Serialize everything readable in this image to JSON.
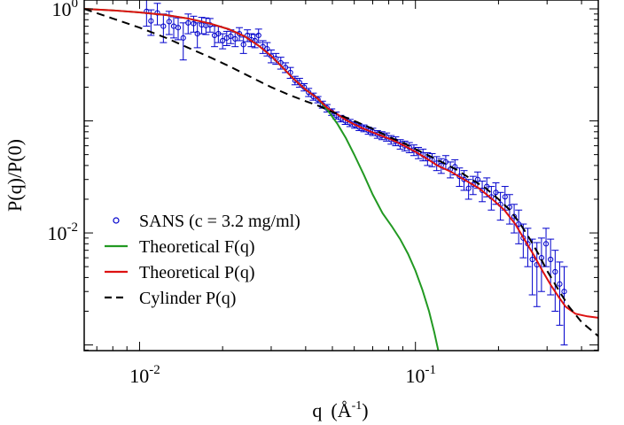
{
  "chart_data": {
    "type": "scatter",
    "xlabel": "q",
    "xlabel_unit_open": "(Å",
    "xlabel_unit_exp": "-1",
    "xlabel_unit_close": ")",
    "ylabel": "P(q)/P(0)",
    "xscale": "log",
    "yscale": "log",
    "xlim": [
      0.0063,
      0.46
    ],
    "ylim": [
      0.00089,
      1.2
    ],
    "grid": false,
    "legend_position": "bottom-left",
    "x_ticks": [
      {
        "value": 0.01,
        "base": "10",
        "exp": "-2"
      },
      {
        "value": 0.1,
        "base": "10",
        "exp": "-1"
      }
    ],
    "y_ticks": [
      {
        "value": 1.0,
        "base": "10",
        "exp": "0"
      },
      {
        "value": 0.01,
        "base": "10",
        "exp": "-2"
      }
    ],
    "series": [
      {
        "name": "SANS (c = 3.2 mg/ml)",
        "kind": "points",
        "color": "#0000cc",
        "points": [
          [
            0.0106,
            0.95,
            0.25
          ],
          [
            0.011,
            0.78,
            0.2
          ],
          [
            0.0116,
            0.92,
            0.2
          ],
          [
            0.0122,
            0.7,
            0.2
          ],
          [
            0.0128,
            0.77,
            0.18
          ],
          [
            0.0133,
            0.7,
            0.15
          ],
          [
            0.0138,
            0.68,
            0.15
          ],
          [
            0.0144,
            0.55,
            0.2
          ],
          [
            0.015,
            0.75,
            0.15
          ],
          [
            0.0157,
            0.74,
            0.12
          ],
          [
            0.0162,
            0.6,
            0.15
          ],
          [
            0.0168,
            0.72,
            0.12
          ],
          [
            0.0174,
            0.71,
            0.12
          ],
          [
            0.018,
            0.72,
            0.1
          ],
          [
            0.0187,
            0.58,
            0.12
          ],
          [
            0.0193,
            0.6,
            0.1
          ],
          [
            0.02,
            0.52,
            0.08
          ],
          [
            0.0207,
            0.55,
            0.08
          ],
          [
            0.0214,
            0.57,
            0.08
          ],
          [
            0.0222,
            0.54,
            0.08
          ],
          [
            0.023,
            0.6,
            0.08
          ],
          [
            0.0238,
            0.48,
            0.08
          ],
          [
            0.0246,
            0.58,
            0.07
          ],
          [
            0.0254,
            0.53,
            0.07
          ],
          [
            0.0262,
            0.52,
            0.07
          ],
          [
            0.027,
            0.58,
            0.08
          ],
          [
            0.028,
            0.46,
            0.06
          ],
          [
            0.029,
            0.44,
            0.06
          ],
          [
            0.03,
            0.38,
            0.05
          ],
          [
            0.0312,
            0.36,
            0.04
          ],
          [
            0.0325,
            0.33,
            0.04
          ],
          [
            0.0338,
            0.3,
            0.03
          ],
          [
            0.0352,
            0.27,
            0.03
          ],
          [
            0.0366,
            0.23,
            0.02
          ],
          [
            0.038,
            0.22,
            0.02
          ],
          [
            0.0395,
            0.2,
            0.015
          ],
          [
            0.041,
            0.18,
            0.015
          ],
          [
            0.0426,
            0.165,
            0.012
          ],
          [
            0.0443,
            0.155,
            0.01
          ],
          [
            0.046,
            0.14,
            0.01
          ],
          [
            0.0478,
            0.13,
            0.01
          ],
          [
            0.0497,
            0.12,
            0.008
          ],
          [
            0.0516,
            0.112,
            0.008
          ],
          [
            0.0536,
            0.105,
            0.007
          ],
          [
            0.0557,
            0.1,
            0.007
          ],
          [
            0.0579,
            0.096,
            0.007
          ],
          [
            0.0602,
            0.092,
            0.006
          ],
          [
            0.0625,
            0.088,
            0.006
          ],
          [
            0.065,
            0.086,
            0.006
          ],
          [
            0.0675,
            0.082,
            0.006
          ],
          [
            0.07,
            0.08,
            0.006
          ],
          [
            0.0728,
            0.076,
            0.006
          ],
          [
            0.0756,
            0.074,
            0.006
          ],
          [
            0.0786,
            0.072,
            0.006
          ],
          [
            0.0816,
            0.068,
            0.006
          ],
          [
            0.0848,
            0.066,
            0.006
          ],
          [
            0.0881,
            0.062,
            0.006
          ],
          [
            0.0915,
            0.06,
            0.006
          ],
          [
            0.095,
            0.058,
            0.006
          ],
          [
            0.0987,
            0.055,
            0.006
          ],
          [
            0.1025,
            0.052,
            0.006
          ],
          [
            0.1065,
            0.05,
            0.006
          ],
          [
            0.1106,
            0.046,
            0.006
          ],
          [
            0.1149,
            0.045,
            0.006
          ],
          [
            0.1194,
            0.042,
            0.006
          ],
          [
            0.124,
            0.04,
            0.006
          ],
          [
            0.1288,
            0.043,
            0.006
          ],
          [
            0.1338,
            0.037,
            0.006
          ],
          [
            0.139,
            0.039,
            0.006
          ],
          [
            0.1444,
            0.032,
            0.006
          ],
          [
            0.15,
            0.03,
            0.006
          ],
          [
            0.1558,
            0.025,
            0.005
          ],
          [
            0.1618,
            0.027,
            0.005
          ],
          [
            0.1681,
            0.03,
            0.005
          ],
          [
            0.1746,
            0.024,
            0.005
          ],
          [
            0.1814,
            0.026,
            0.005
          ],
          [
            0.1884,
            0.021,
            0.005
          ],
          [
            0.1957,
            0.023,
            0.005
          ],
          [
            0.2033,
            0.018,
            0.005
          ],
          [
            0.2112,
            0.021,
            0.005
          ],
          [
            0.2194,
            0.017,
            0.005
          ],
          [
            0.2279,
            0.014,
            0.004
          ],
          [
            0.2367,
            0.012,
            0.004
          ],
          [
            0.2459,
            0.009,
            0.003
          ],
          [
            0.2554,
            0.008,
            0.003
          ],
          [
            0.2653,
            0.0058,
            0.003
          ],
          [
            0.2756,
            0.0052,
            0.003
          ],
          [
            0.2863,
            0.006,
            0.003
          ],
          [
            0.2974,
            0.008,
            0.003
          ],
          [
            0.3089,
            0.0058,
            0.003
          ],
          [
            0.3209,
            0.0045,
            0.0025
          ],
          [
            0.3333,
            0.0035,
            0.002
          ],
          [
            0.346,
            0.003,
            0.002
          ]
        ]
      },
      {
        "name": "Theoretical F(q)",
        "kind": "line",
        "color": "#229922",
        "points": [
          [
            0.0063,
            1.0
          ],
          [
            0.008,
            0.97
          ],
          [
            0.01,
            0.93
          ],
          [
            0.0125,
            0.88
          ],
          [
            0.015,
            0.82
          ],
          [
            0.018,
            0.74
          ],
          [
            0.021,
            0.66
          ],
          [
            0.024,
            0.57
          ],
          [
            0.027,
            0.47
          ],
          [
            0.03,
            0.38
          ],
          [
            0.033,
            0.3
          ],
          [
            0.036,
            0.24
          ],
          [
            0.04,
            0.19
          ],
          [
            0.044,
            0.16
          ],
          [
            0.048,
            0.125
          ],
          [
            0.052,
            0.095
          ],
          [
            0.056,
            0.07
          ],
          [
            0.06,
            0.05
          ],
          [
            0.065,
            0.033
          ],
          [
            0.07,
            0.022
          ],
          [
            0.076,
            0.015
          ],
          [
            0.082,
            0.0115
          ],
          [
            0.088,
            0.0088
          ],
          [
            0.094,
            0.0065
          ],
          [
            0.1,
            0.0046
          ],
          [
            0.106,
            0.0031
          ],
          [
            0.112,
            0.002
          ],
          [
            0.117,
            0.0013
          ],
          [
            0.121,
            0.00089
          ]
        ]
      },
      {
        "name": "Theoretical P(q)",
        "kind": "line",
        "color": "#dd1111",
        "points": [
          [
            0.0063,
            1.0
          ],
          [
            0.008,
            0.97
          ],
          [
            0.01,
            0.93
          ],
          [
            0.0125,
            0.88
          ],
          [
            0.015,
            0.82
          ],
          [
            0.018,
            0.74
          ],
          [
            0.021,
            0.66
          ],
          [
            0.024,
            0.57
          ],
          [
            0.027,
            0.47
          ],
          [
            0.03,
            0.38
          ],
          [
            0.033,
            0.3
          ],
          [
            0.036,
            0.24
          ],
          [
            0.04,
            0.19
          ],
          [
            0.044,
            0.16
          ],
          [
            0.048,
            0.13
          ],
          [
            0.052,
            0.115
          ],
          [
            0.056,
            0.102
          ],
          [
            0.06,
            0.093
          ],
          [
            0.065,
            0.085
          ],
          [
            0.07,
            0.079
          ],
          [
            0.076,
            0.073
          ],
          [
            0.082,
            0.068
          ],
          [
            0.09,
            0.061
          ],
          [
            0.1,
            0.053
          ],
          [
            0.11,
            0.046
          ],
          [
            0.12,
            0.04
          ],
          [
            0.135,
            0.035
          ],
          [
            0.15,
            0.03
          ],
          [
            0.17,
            0.025
          ],
          [
            0.19,
            0.02
          ],
          [
            0.21,
            0.016
          ],
          [
            0.23,
            0.012
          ],
          [
            0.25,
            0.0085
          ],
          [
            0.27,
            0.0062
          ],
          [
            0.29,
            0.0045
          ],
          [
            0.31,
            0.0034
          ],
          [
            0.33,
            0.0027
          ],
          [
            0.35,
            0.0022
          ],
          [
            0.38,
            0.0019
          ],
          [
            0.42,
            0.0018
          ],
          [
            0.46,
            0.00175
          ]
        ]
      },
      {
        "name": "Cylinder P(q)",
        "kind": "dashed-line",
        "color": "#000000",
        "points": [
          [
            0.0063,
            1.0
          ],
          [
            0.008,
            0.82
          ],
          [
            0.01,
            0.68
          ],
          [
            0.0125,
            0.55
          ],
          [
            0.015,
            0.45
          ],
          [
            0.018,
            0.37
          ],
          [
            0.021,
            0.31
          ],
          [
            0.025,
            0.25
          ],
          [
            0.03,
            0.2
          ],
          [
            0.035,
            0.17
          ],
          [
            0.04,
            0.15
          ],
          [
            0.045,
            0.135
          ],
          [
            0.05,
            0.12
          ],
          [
            0.06,
            0.1
          ],
          [
            0.07,
            0.085
          ],
          [
            0.08,
            0.072
          ],
          [
            0.09,
            0.064
          ],
          [
            0.1,
            0.056
          ],
          [
            0.12,
            0.045
          ],
          [
            0.14,
            0.037
          ],
          [
            0.16,
            0.03
          ],
          [
            0.18,
            0.025
          ],
          [
            0.2,
            0.02
          ],
          [
            0.22,
            0.016
          ],
          [
            0.24,
            0.012
          ],
          [
            0.26,
            0.0088
          ],
          [
            0.28,
            0.0064
          ],
          [
            0.3,
            0.0046
          ],
          [
            0.33,
            0.0031
          ],
          [
            0.36,
            0.0022
          ],
          [
            0.4,
            0.0016
          ],
          [
            0.46,
            0.0012
          ]
        ]
      }
    ]
  }
}
